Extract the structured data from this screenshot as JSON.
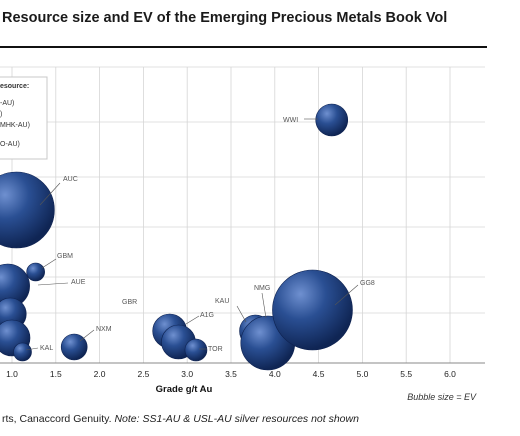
{
  "header": {
    "title": "Resource size and EV of the Emerging Precious Metals Book Vol"
  },
  "footer": {
    "source_prefix": "rts, Canaccord Genuity. ",
    "note": "Note: SS1-AU & USL-AU silver resources not shown"
  },
  "chart_data": {
    "type": "scatter",
    "title": "",
    "xlabel": "Grade g/t Au",
    "ylabel": "",
    "xlim": [
      0.6,
      6.0
    ],
    "x_ticks": [
      "1.0",
      "1.5",
      "2.0",
      "2.5",
      "3.0",
      "3.5",
      "4.0",
      "4.5",
      "5.0",
      "5.5",
      "6.0"
    ],
    "grid": true,
    "bubble_note": "Bubble size = EV",
    "legend": {
      "visible_lines": [
        "esource:",
        "-AU)",
        ")",
        "MHK-AU)",
        "O-AU)"
      ]
    },
    "bubble_color": "#2a4f93",
    "points": [
      {
        "label": "WWI",
        "x": 4.65,
        "size_rel": 0.2
      },
      {
        "label": "AUC",
        "x": 1.05,
        "size_rel": 0.48
      },
      {
        "label": "GBM",
        "x": 1.27,
        "size_rel": 0.12
      },
      {
        "label": "AUE",
        "x": 0.95,
        "size_rel": 0.28
      },
      {
        "label": "",
        "x": 0.98,
        "size_rel": 0.2
      },
      {
        "label": "",
        "x": 1.0,
        "size_rel": 0.22
      },
      {
        "label": "KAL",
        "x": 1.12,
        "size_rel": 0.11
      },
      {
        "label": "NXM",
        "x": 1.71,
        "size_rel": 0.16
      },
      {
        "label": "GBR",
        "x": 2.1,
        "size_rel": 0
      },
      {
        "label": "A1G",
        "x": 2.8,
        "size_rel": 0.2
      },
      {
        "label": "",
        "x": 2.9,
        "size_rel": 0.2
      },
      {
        "label": "TOR",
        "x": 3.1,
        "size_rel": 0.13
      },
      {
        "label": "KAU",
        "x": 3.78,
        "size_rel": 0.19
      },
      {
        "label": "NMG",
        "x": 3.92,
        "size_rel": 0.32
      },
      {
        "label": "GG8",
        "x": 4.43,
        "size_rel": 0.6
      }
    ]
  }
}
